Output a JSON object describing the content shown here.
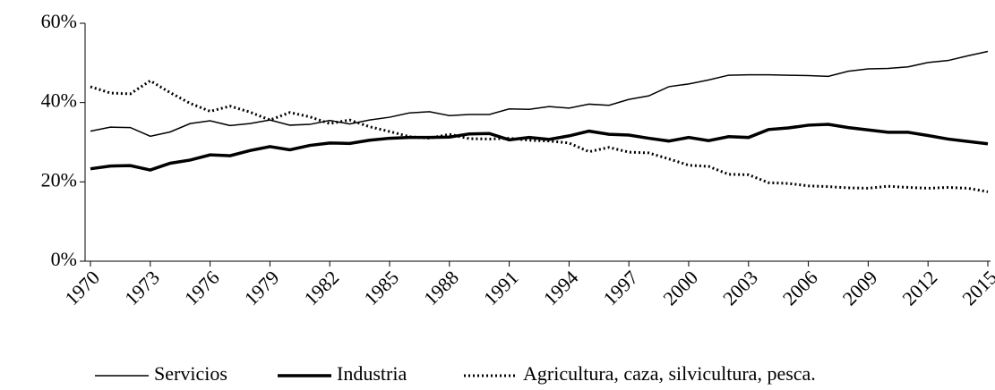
{
  "chart_data": {
    "type": "line",
    "x": [
      1970,
      1971,
      1972,
      1973,
      1974,
      1975,
      1976,
      1977,
      1978,
      1979,
      1980,
      1981,
      1982,
      1983,
      1984,
      1985,
      1986,
      1987,
      1988,
      1989,
      1990,
      1991,
      1992,
      1993,
      1994,
      1995,
      1996,
      1997,
      1998,
      1999,
      2000,
      2001,
      2002,
      2003,
      2004,
      2005,
      2006,
      2007,
      2008,
      2009,
      2010,
      2011,
      2012,
      2013,
      2014,
      2015
    ],
    "xlim": [
      1970,
      2015
    ],
    "xticks": [
      1970,
      1973,
      1976,
      1979,
      1982,
      1985,
      1988,
      1991,
      1994,
      1997,
      2000,
      2003,
      2006,
      2009,
      2012,
      2015
    ],
    "ylim": [
      0,
      60
    ],
    "yticks": [
      {
        "value": 0,
        "label": "0%"
      },
      {
        "value": 20,
        "label": "20%"
      },
      {
        "value": 40,
        "label": "40%"
      },
      {
        "value": 60,
        "label": "60%"
      }
    ],
    "legend": "bottom",
    "series": [
      {
        "name": "Servicios",
        "color": "#000000",
        "width": 1.5,
        "style": "solid",
        "values": [
          32.8,
          33.8,
          33.7,
          31.5,
          32.6,
          34.7,
          35.4,
          34.2,
          34.7,
          35.6,
          34.3,
          34.5,
          35.5,
          34.6,
          35.6,
          36.3,
          37.4,
          37.7,
          36.7,
          37.0,
          37.0,
          38.4,
          38.3,
          39.0,
          38.6,
          39.6,
          39.3,
          40.8,
          41.7,
          44.0,
          44.7,
          45.7,
          46.9,
          47.0,
          47.0,
          46.9,
          46.8,
          46.6,
          47.9,
          48.5,
          48.6,
          49.0,
          50.1,
          50.6,
          51.8,
          52.9
        ]
      },
      {
        "name": "Industria",
        "color": "#000000",
        "width": 3.5,
        "style": "solid",
        "values": [
          23.3,
          24.0,
          24.1,
          23.0,
          24.7,
          25.5,
          26.8,
          26.6,
          27.9,
          28.9,
          28.1,
          29.2,
          29.8,
          29.7,
          30.5,
          31.0,
          31.2,
          31.2,
          31.3,
          32.1,
          32.2,
          30.6,
          31.2,
          30.7,
          31.6,
          32.8,
          32.0,
          31.8,
          31.0,
          30.3,
          31.2,
          30.4,
          31.4,
          31.2,
          33.2,
          33.6,
          34.3,
          34.5,
          33.7,
          33.1,
          32.5,
          32.5,
          31.7,
          30.8,
          30.2,
          29.6
        ]
      },
      {
        "name": "Agricultura, caza, silvicultura, pesca.",
        "color": "#000000",
        "width": 3,
        "style": "dotted",
        "values": [
          44.0,
          42.4,
          42.2,
          45.5,
          42.5,
          39.8,
          37.8,
          39.1,
          37.6,
          35.6,
          37.5,
          36.4,
          34.7,
          35.6,
          33.9,
          32.7,
          31.4,
          31.0,
          32.0,
          30.9,
          30.8,
          31.0,
          30.5,
          30.3,
          29.8,
          27.6,
          28.7,
          27.5,
          27.3,
          25.8,
          24.2,
          23.9,
          21.9,
          21.8,
          19.8,
          19.6,
          19.0,
          18.8,
          18.5,
          18.4,
          18.9,
          18.6,
          18.4,
          18.6,
          18.4,
          17.5
        ]
      }
    ]
  }
}
